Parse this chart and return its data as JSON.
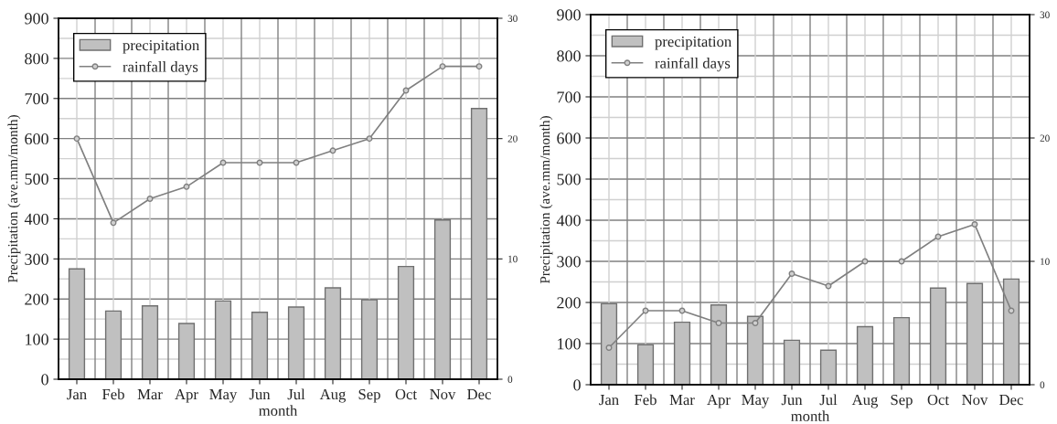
{
  "chart_data": [
    {
      "type": "bar",
      "categories": [
        "Jan",
        "Feb",
        "Mar",
        "Apr",
        "May",
        "Jun",
        "Jul",
        "Aug",
        "Sep",
        "Oct",
        "Nov",
        "Dec"
      ],
      "xlabel": "month",
      "ylabel": "Precipitation (ave.mm/month)",
      "ylim": [
        0,
        900
      ],
      "yticks": [
        0,
        100,
        200,
        300,
        400,
        500,
        600,
        700,
        800,
        900
      ],
      "y2lim": [
        0,
        30
      ],
      "y2ticks": [
        0,
        10,
        20,
        30
      ],
      "grid": true,
      "legend": "top left",
      "series": [
        {
          "name": "precipitation",
          "color": "#c0c0c0",
          "values": [
            275,
            170,
            183,
            139,
            195,
            167,
            180,
            228,
            198,
            281,
            397,
            675
          ]
        },
        {
          "name": "rainfall days",
          "type": "line",
          "axis": "y2",
          "color": "#808080",
          "marker": "circle",
          "values": [
            20,
            13,
            15,
            16,
            18,
            18,
            18,
            19,
            20,
            24,
            26,
            26
          ]
        }
      ]
    },
    {
      "type": "bar",
      "categories": [
        "Jan",
        "Feb",
        "Mar",
        "Apr",
        "May",
        "Jun",
        "Jul",
        "Aug",
        "Sep",
        "Oct",
        "Nov",
        "Dec"
      ],
      "xlabel": "month",
      "ylabel": "Precipitation (ave.mm/month)",
      "ylim": [
        0,
        900
      ],
      "yticks": [
        0,
        100,
        200,
        300,
        400,
        500,
        600,
        700,
        800,
        900
      ],
      "y2lim": [
        0,
        30
      ],
      "y2ticks": [
        0,
        10,
        20,
        30
      ],
      "grid": true,
      "legend": "top left",
      "series": [
        {
          "name": "precipitation",
          "color": "#c0c0c0",
          "values": [
            197,
            97,
            152,
            194,
            166,
            108,
            84,
            141,
            163,
            235,
            246,
            257
          ]
        },
        {
          "name": "rainfall days",
          "type": "line",
          "axis": "y2",
          "color": "#808080",
          "marker": "circle",
          "values": [
            3,
            6,
            6,
            5,
            5,
            9,
            8,
            10,
            10,
            12,
            13,
            6
          ]
        }
      ]
    }
  ]
}
